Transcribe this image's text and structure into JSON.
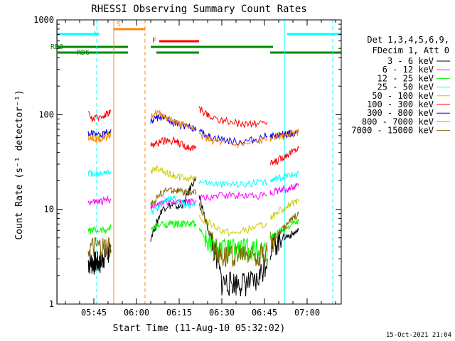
{
  "chart_data": {
    "type": "line",
    "title": "RHESSI Observing Summary Count Rates",
    "xlabel": "Start Time (11-Aug-10 05:32:02)",
    "ylabel": "Count Rate (s⁻¹ detector⁻¹)",
    "y_scale": "log",
    "ylim": [
      1,
      1000
    ],
    "xlim": [
      "05:32",
      "07:12"
    ],
    "x_ticks": [
      "05:45",
      "06:00",
      "06:15",
      "06:30",
      "06:45",
      "07:00"
    ],
    "y_ticks": [
      "1",
      "10",
      "100",
      "1000"
    ],
    "grid": false,
    "legend_position": "right",
    "legend_header": [
      "Det 1,3,4,5,6,9,",
      "FDecim 1, Att 0"
    ],
    "footer_date": "15-Oct-2021 21:04",
    "series": [
      {
        "name": "3 - 6 keV",
        "color": "#000000",
        "segments": [
          {
            "x": [
              "05:43",
              "05:44",
              "05:45",
              "05:46",
              "05:47",
              "05:48",
              "05:49",
              "05:50",
              "05:51"
            ],
            "y": [
              2.8,
              2.8,
              2.8,
              2.8,
              2.8,
              3.0,
              3.5,
              3.5,
              3.5
            ]
          },
          {
            "x": [
              "06:05",
              "06:07",
              "06:09",
              "06:11",
              "06:13",
              "06:15",
              "06:17",
              "06:19",
              "06:21"
            ],
            "y": [
              5,
              7,
              10,
              11,
              11,
              10.5,
              12,
              17,
              22
            ]
          },
          {
            "x": [
              "06:22",
              "06:24",
              "06:26",
              "06:28",
              "06:30",
              "06:32",
              "06:34",
              "06:36",
              "06:38",
              "06:40",
              "06:42",
              "06:44",
              "06:46"
            ],
            "y": [
              14,
              8,
              5,
              3,
              1.7,
              1.7,
              1.7,
              1.7,
              1.7,
              1.7,
              1.7,
              2.2,
              3
            ]
          },
          {
            "x": [
              "06:47",
              "06:49",
              "06:51",
              "06:53",
              "06:55",
              "06:57"
            ],
            "y": [
              4,
              4.5,
              5,
              5.2,
              5.5,
              6
            ]
          }
        ]
      },
      {
        "name": "6 - 12 keV",
        "color": "#ff00ff",
        "segments": [
          {
            "x": [
              "05:43",
              "05:45",
              "05:47",
              "05:49",
              "05:51"
            ],
            "y": [
              12,
              12,
              12,
              12.5,
              13
            ]
          },
          {
            "x": [
              "06:05",
              "06:07",
              "06:09",
              "06:11",
              "06:13",
              "06:15",
              "06:17",
              "06:19",
              "06:21"
            ],
            "y": [
              10,
              11,
              12,
              12,
              12,
              12,
              12,
              12,
              12
            ]
          },
          {
            "x": [
              "06:22",
              "06:26",
              "06:30",
              "06:34",
              "06:38",
              "06:42",
              "06:46"
            ],
            "y": [
              13,
              13.5,
              14,
              14,
              14,
              14,
              14
            ]
          },
          {
            "x": [
              "06:47",
              "06:49",
              "06:51",
              "06:53",
              "06:55",
              "06:57"
            ],
            "y": [
              15,
              15.5,
              16,
              16.5,
              17,
              17.5
            ]
          }
        ]
      },
      {
        "name": "12 - 25 keV",
        "color": "#00ff00",
        "segments": [
          {
            "x": [
              "05:43",
              "05:45",
              "05:47",
              "05:49",
              "05:51"
            ],
            "y": [
              6,
              6,
              6,
              6,
              6.5
            ]
          },
          {
            "x": [
              "06:05",
              "06:07",
              "06:09",
              "06:11",
              "06:13",
              "06:15",
              "06:17",
              "06:19",
              "06:21"
            ],
            "y": [
              6,
              6.5,
              7,
              7,
              7,
              7,
              7,
              7,
              7
            ]
          },
          {
            "x": [
              "06:22",
              "06:24",
              "06:26",
              "06:28",
              "06:30",
              "06:32",
              "06:34",
              "06:36",
              "06:38",
              "06:40",
              "06:42",
              "06:44",
              "06:46"
            ],
            "y": [
              6.5,
              5,
              4.2,
              3.8,
              3.8,
              3.8,
              3.8,
              3.8,
              3.8,
              3.8,
              3.8,
              3.8,
              3.8
            ]
          },
          {
            "x": [
              "06:47",
              "06:49",
              "06:51",
              "06:53",
              "06:55",
              "06:57"
            ],
            "y": [
              5,
              5.5,
              6,
              6.5,
              7,
              7.5
            ]
          }
        ]
      },
      {
        "name": "25 - 50 keV",
        "color": "#00ffff",
        "segments": [
          {
            "x": [
              "05:43",
              "05:45",
              "05:47",
              "05:49",
              "05:51"
            ],
            "y": [
              24,
              24,
              24,
              24.5,
              25
            ]
          },
          {
            "x": [
              "06:05",
              "06:07",
              "06:09",
              "06:11",
              "06:13",
              "06:15",
              "06:17",
              "06:19",
              "06:21"
            ],
            "y": [
              9,
              10,
              11.5,
              12.5,
              13,
              12,
              11,
              11,
              12
            ]
          },
          {
            "x": [
              "06:22",
              "06:26",
              "06:30",
              "06:34",
              "06:38",
              "06:42",
              "06:46"
            ],
            "y": [
              20,
              19,
              18.5,
              18.5,
              18.5,
              19,
              19
            ]
          },
          {
            "x": [
              "06:47",
              "06:49",
              "06:51",
              "06:53",
              "06:55",
              "06:57"
            ],
            "y": [
              20,
              21,
              22,
              22.5,
              23,
              24
            ]
          }
        ]
      },
      {
        "name": "50 - 100 keV",
        "color": "#cccc00",
        "segments": [
          {
            "x": [
              "05:43",
              "05:45",
              "05:47",
              "05:49",
              "05:51"
            ],
            "y": [
              60,
              58,
              60,
              62,
              65
            ]
          },
          {
            "x": [
              "06:05",
              "06:07",
              "06:09",
              "06:11",
              "06:13",
              "06:15",
              "06:17",
              "06:19",
              "06:21"
            ],
            "y": [
              25,
              27,
              26,
              24,
              23,
              22,
              21,
              21,
              22
            ]
          },
          {
            "x": [
              "06:22",
              "06:26",
              "06:30",
              "06:34",
              "06:38",
              "06:42",
              "06:46"
            ],
            "y": [
              8,
              7,
              6,
              5.5,
              6,
              6.5,
              7
            ]
          },
          {
            "x": [
              "06:47",
              "06:49",
              "06:51",
              "06:53",
              "06:55",
              "06:57"
            ],
            "y": [
              8,
              9,
              10,
              11,
              11.5,
              12
            ]
          }
        ]
      },
      {
        "name": "100 - 300 keV",
        "color": "#ff0000",
        "segments": [
          {
            "x": [
              "05:43",
              "05:45",
              "05:47",
              "05:49",
              "05:51"
            ],
            "y": [
              100,
              90,
              95,
              100,
              110
            ]
          },
          {
            "x": [
              "06:05",
              "06:07",
              "06:09",
              "06:11",
              "06:13",
              "06:15",
              "06:17",
              "06:19",
              "06:21"
            ],
            "y": [
              48,
              50,
              52,
              54,
              53,
              50,
              47,
              45,
              44
            ]
          },
          {
            "x": [
              "06:22",
              "06:24",
              "06:26",
              "06:30",
              "06:34",
              "06:38",
              "06:42",
              "06:46"
            ],
            "y": [
              115,
              105,
              95,
              88,
              82,
              80,
              80,
              84
            ]
          },
          {
            "x": [
              "06:47",
              "06:49",
              "06:51",
              "06:53",
              "06:55",
              "06:57"
            ],
            "y": [
              30,
              32,
              35,
              38,
              41,
              44
            ]
          }
        ]
      },
      {
        "name": "300 - 800 keV",
        "color": "#0000ff",
        "segments": [
          {
            "x": [
              "05:43",
              "05:45",
              "05:47",
              "05:49",
              "05:51"
            ],
            "y": [
              65,
              62,
              60,
              63,
              70
            ]
          },
          {
            "x": [
              "06:05",
              "06:07",
              "06:09",
              "06:11",
              "06:13",
              "06:15",
              "06:17",
              "06:19",
              "06:21"
            ],
            "y": [
              85,
              92,
              93,
              88,
              83,
              78,
              75,
              72,
              70
            ]
          },
          {
            "x": [
              "06:22",
              "06:24",
              "06:26",
              "06:30",
              "06:34",
              "06:38",
              "06:42",
              "06:46"
            ],
            "y": [
              65,
              62,
              58,
              55,
              52,
              52,
              55,
              60
            ]
          },
          {
            "x": [
              "06:47",
              "06:49",
              "06:51",
              "06:53",
              "06:55",
              "06:57"
            ],
            "y": [
              60,
              61,
              62,
              63,
              64,
              65
            ]
          }
        ]
      },
      {
        "name": "800 - 7000 keV",
        "color": "#ff8800",
        "segments": [
          {
            "x": [
              "05:43",
              "05:45",
              "05:47",
              "05:49",
              "05:51"
            ],
            "y": [
              58,
              55,
              55,
              57,
              62
            ]
          },
          {
            "x": [
              "06:05",
              "06:07",
              "06:09",
              "06:11",
              "06:13",
              "06:15",
              "06:17",
              "06:19",
              "06:21"
            ],
            "y": [
              100,
              105,
              100,
              92,
              85,
              80,
              77,
              72,
              70
            ]
          },
          {
            "x": [
              "06:22",
              "06:24",
              "06:26",
              "06:30",
              "06:34",
              "06:38",
              "06:42",
              "06:46"
            ],
            "y": [
              62,
              58,
              54,
              50,
              48,
              48,
              50,
              55
            ]
          },
          {
            "x": [
              "06:47",
              "06:49",
              "06:51",
              "06:53",
              "06:55",
              "06:57"
            ],
            "y": [
              55,
              57,
              59,
              61,
              63,
              65
            ]
          }
        ]
      },
      {
        "name": "7000 - 15000 keV",
        "color": "#886600",
        "segments": [
          {
            "x": [
              "05:43",
              "05:45",
              "05:47",
              "05:49",
              "05:51"
            ],
            "y": [
              3.8,
              4,
              4,
              4,
              4.2
            ]
          },
          {
            "x": [
              "06:05",
              "06:07",
              "06:09",
              "06:11",
              "06:13",
              "06:15",
              "06:17",
              "06:19",
              "06:21"
            ],
            "y": [
              11,
              13,
              15,
              16,
              16,
              15.5,
              15,
              15,
              15
            ]
          },
          {
            "x": [
              "06:22",
              "06:24",
              "06:26",
              "06:28",
              "06:30",
              "06:32",
              "06:34",
              "06:36",
              "06:38",
              "06:40",
              "06:42",
              "06:44",
              "06:46"
            ],
            "y": [
              11,
              8,
              5.5,
              4,
              3.4,
              3.3,
              3.3,
              3.3,
              3.3,
              3.3,
              3.3,
              3.4,
              3.6
            ]
          },
          {
            "x": [
              "06:47",
              "06:49",
              "06:51",
              "06:53",
              "06:55",
              "06:57"
            ],
            "y": [
              4.5,
              5,
              6,
              7,
              8,
              9
            ]
          }
        ]
      }
    ],
    "flag_bars": [
      {
        "label": "N",
        "color": "#00ffff",
        "level": "top",
        "start": "05:32",
        "end": "05:47"
      },
      {
        "label": "S",
        "color": "#ff8800",
        "level": "top2",
        "start": "05:52",
        "end": "06:03"
      },
      {
        "label": "F",
        "color": "#ff0000",
        "level": "top3",
        "start": "06:08",
        "end": "06:22"
      },
      {
        "label": "",
        "color": "#00ffff",
        "level": "top",
        "start": "06:53",
        "end": "07:12"
      },
      {
        "label": "RB0",
        "color": "#008800",
        "level": "mid",
        "start": "05:32",
        "end": "05:57"
      },
      {
        "label": "",
        "color": "#008800",
        "level": "mid",
        "start": "06:05",
        "end": "06:48"
      },
      {
        "label": "RD6",
        "color": "#008800",
        "level": "low",
        "start": "05:32",
        "end": "05:57"
      },
      {
        "label": "",
        "color": "#008800",
        "level": "low",
        "start": "06:07",
        "end": "06:22"
      },
      {
        "label": "",
        "color": "#008800",
        "level": "low",
        "start": "06:47",
        "end": "07:12"
      }
    ],
    "vertical_markers": [
      {
        "x": "05:32:10",
        "color": "#00ffff",
        "style": "solid"
      },
      {
        "x": "05:46",
        "color": "#00ffff",
        "style": "dashed"
      },
      {
        "x": "05:52",
        "color": "#ff8800",
        "style": "solid"
      },
      {
        "x": "06:03",
        "color": "#ff8800",
        "style": "dashed"
      },
      {
        "x": "06:52",
        "color": "#00ffff",
        "style": "solid"
      },
      {
        "x": "07:09",
        "color": "#00ffff",
        "style": "dashed"
      }
    ]
  }
}
